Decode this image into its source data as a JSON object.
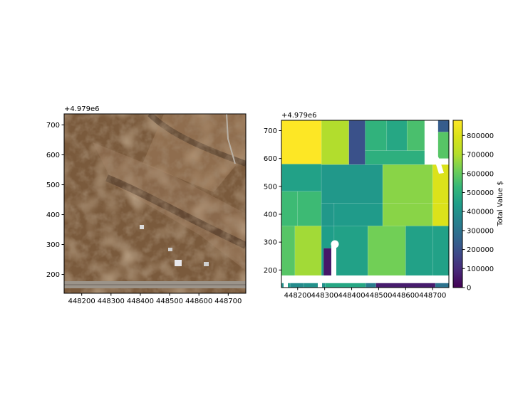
{
  "chart_data": [
    {
      "type": "image",
      "title": "",
      "offset_label": "+4.979e6",
      "xlim": [
        448140,
        448760
      ],
      "ylim": [
        137,
        737
      ],
      "x_ticks": [
        448200,
        448300,
        448400,
        448500,
        448600,
        448700
      ],
      "y_ticks": [
        200,
        300,
        400,
        500,
        600,
        700
      ],
      "content": "aerial-photo"
    },
    {
      "type": "heatmap",
      "title": "",
      "offset_label": "+4.979e6",
      "xlim": [
        448140,
        448760
      ],
      "ylim": [
        137,
        737
      ],
      "x_ticks": [
        448200,
        448300,
        448400,
        448500,
        448600,
        448700
      ],
      "y_ticks": [
        200,
        300,
        400,
        500,
        600,
        700
      ],
      "colormap": "viridis",
      "value_range": [
        0,
        880000
      ],
      "colorbar": {
        "label": "Total Value $",
        "ticks": [
          0,
          100000,
          200000,
          300000,
          400000,
          500000,
          600000,
          700000,
          800000
        ]
      },
      "parcels": [
        {
          "x": [
            448140,
            448288
          ],
          "y": [
            580,
            737
          ],
          "value": 880000
        },
        {
          "x": [
            448288,
            448390
          ],
          "y": [
            578,
            737
          ],
          "value": 700000
        },
        {
          "x": [
            448390,
            448450
          ],
          "y": [
            578,
            737
          ],
          "value": 200000
        },
        {
          "x": [
            448450,
            448530
          ],
          "y": [
            628,
            737
          ],
          "value": 510000
        },
        {
          "x": [
            448530,
            448605
          ],
          "y": [
            628,
            737
          ],
          "value": 470000
        },
        {
          "x": [
            448605,
            448670
          ],
          "y": [
            628,
            737
          ],
          "value": 560000
        },
        {
          "x": [
            448720,
            448760
          ],
          "y": [
            695,
            737
          ],
          "value": 230000
        },
        {
          "x": [
            448720,
            448760
          ],
          "y": [
            600,
            695
          ],
          "value": 580000
        },
        {
          "x": [
            448450,
            448670
          ],
          "y": [
            578,
            628
          ],
          "value": 500000
        },
        {
          "x": [
            448140,
            448288
          ],
          "y": [
            482,
            580
          ],
          "value": 450000
        },
        {
          "x": [
            448288,
            448515
          ],
          "y": [
            440,
            578
          ],
          "value": 420000
        },
        {
          "x": [
            448515,
            448700
          ],
          "y": [
            440,
            578
          ],
          "value": 650000
        },
        {
          "x": [
            448700,
            448760
          ],
          "y": [
            440,
            578
          ],
          "value": 800000
        },
        {
          "x": [
            448140,
            448200
          ],
          "y": [
            358,
            482
          ],
          "value": 540000
        },
        {
          "x": [
            448200,
            448288
          ],
          "y": [
            358,
            482
          ],
          "value": 540000
        },
        {
          "x": [
            448288,
            448335
          ],
          "y": [
            358,
            440
          ],
          "value": 420000
        },
        {
          "x": [
            448335,
            448515
          ],
          "y": [
            358,
            440
          ],
          "value": 430000
        },
        {
          "x": [
            448515,
            448700
          ],
          "y": [
            358,
            440
          ],
          "value": 650000
        },
        {
          "x": [
            448700,
            448760
          ],
          "y": [
            358,
            440
          ],
          "value": 800000
        },
        {
          "x": [
            448140,
            448190
          ],
          "y": [
            172,
            358
          ],
          "value": 580000
        },
        {
          "x": [
            448190,
            448288
          ],
          "y": [
            172,
            358
          ],
          "value": 680000
        },
        {
          "x": [
            448288,
            448335
          ],
          "y": [
            172,
            358
          ],
          "value": 440000
        },
        {
          "x": [
            448335,
            448460
          ],
          "y": [
            172,
            358
          ],
          "value": 450000
        },
        {
          "x": [
            448460,
            448600
          ],
          "y": [
            172,
            358
          ],
          "value": 620000
        },
        {
          "x": [
            448600,
            448700
          ],
          "y": [
            172,
            358
          ],
          "value": 450000
        },
        {
          "x": [
            448700,
            448760
          ],
          "y": [
            172,
            358
          ],
          "value": 450000
        },
        {
          "x": [
            448296,
            448338
          ],
          "y": [
            172,
            278
          ],
          "value": 50000
        },
        {
          "x": [
            448140,
            448160
          ],
          "y": [
            137,
            153
          ],
          "value": 400000
        },
        {
          "x": [
            448160,
            448172
          ],
          "y": [
            137,
            153
          ],
          "value": 430000
        },
        {
          "x": [
            448172,
            448222
          ],
          "y": [
            137,
            153
          ],
          "value": 380000
        },
        {
          "x": [
            448222,
            448302
          ],
          "y": [
            137,
            153
          ],
          "value": 400000
        },
        {
          "x": [
            448302,
            448452
          ],
          "y": [
            137,
            153
          ],
          "value": 470000
        },
        {
          "x": [
            448452,
            448490
          ],
          "y": [
            137,
            153
          ],
          "value": 330000
        },
        {
          "x": [
            448490,
            448710
          ],
          "y": [
            137,
            153
          ],
          "value": 60000
        },
        {
          "x": [
            448710,
            448760
          ],
          "y": [
            137,
            153
          ],
          "value": 300000
        }
      ]
    }
  ]
}
